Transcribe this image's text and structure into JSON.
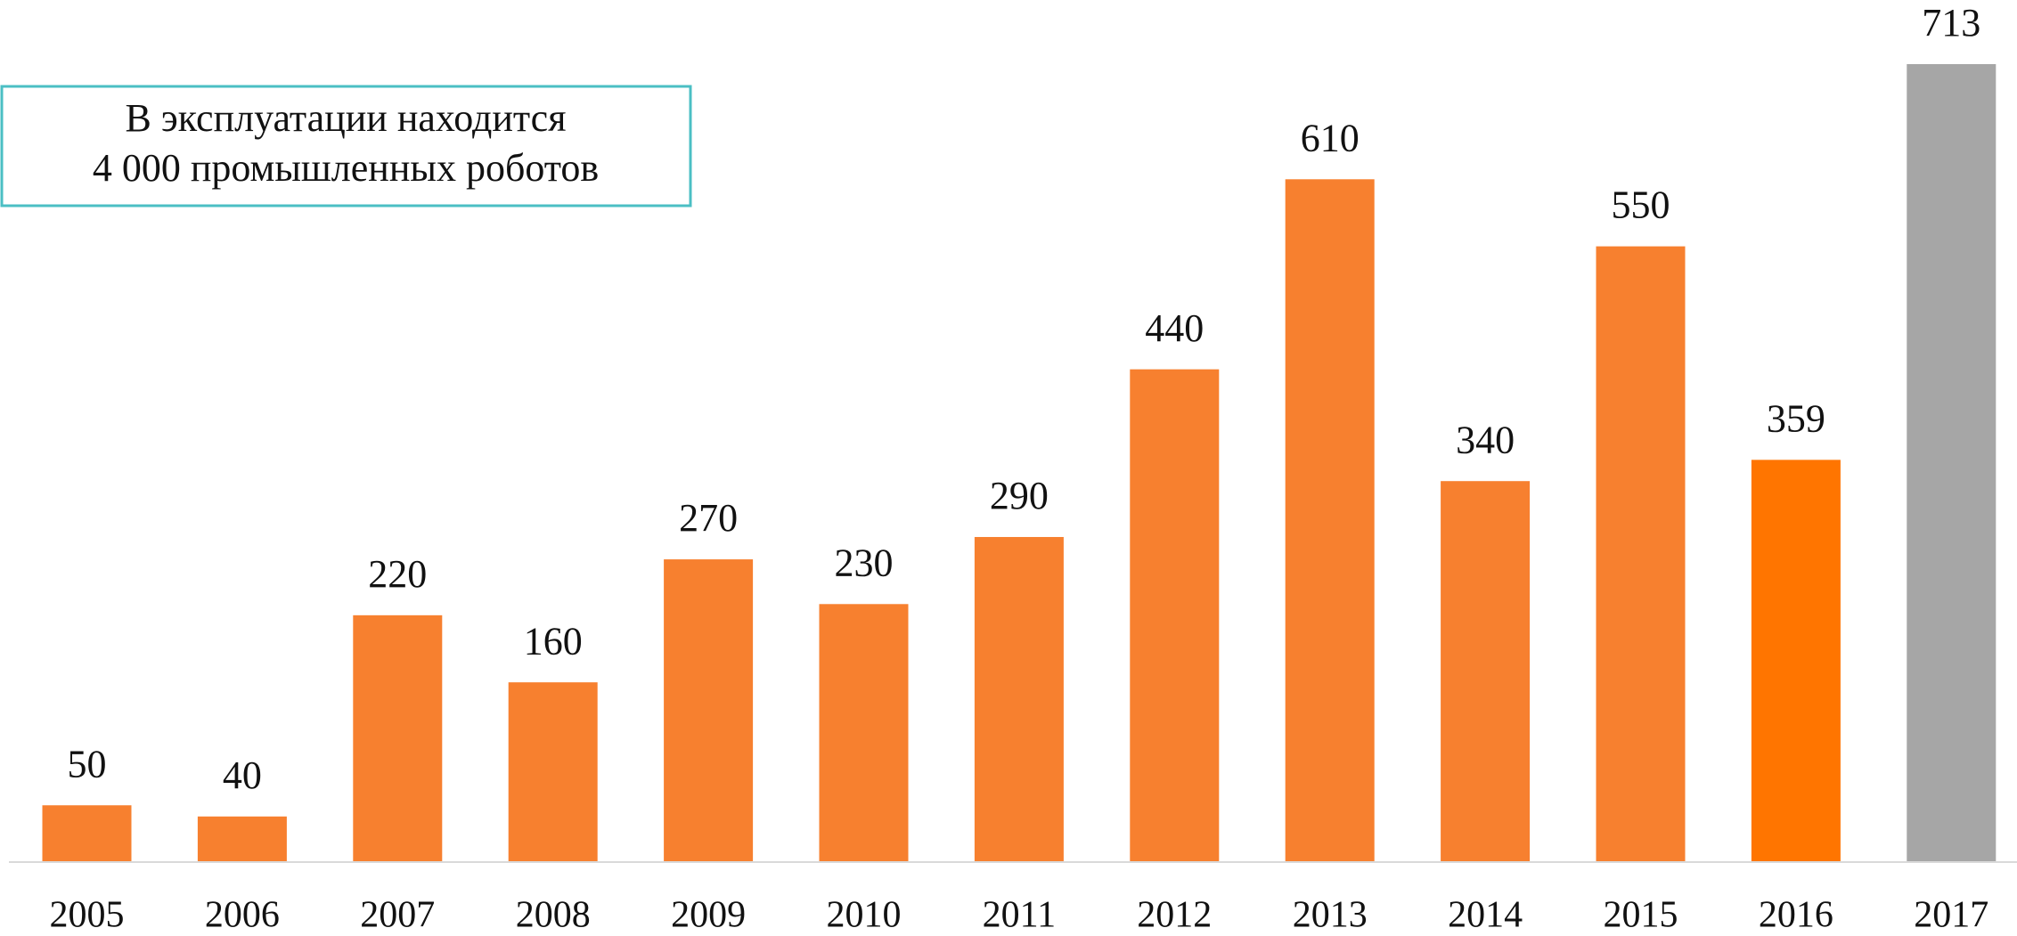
{
  "chart_data": {
    "type": "bar",
    "categories": [
      "2005",
      "2006",
      "2007",
      "2008",
      "2009",
      "2010",
      "2011",
      "2012",
      "2013",
      "2014",
      "2015",
      "2016",
      "2017"
    ],
    "values": [
      50,
      40,
      220,
      160,
      270,
      230,
      290,
      440,
      610,
      340,
      550,
      359,
      713
    ],
    "colors": [
      "#f7802f",
      "#f7802f",
      "#f7802f",
      "#f7802f",
      "#f7802f",
      "#f7802f",
      "#f7802f",
      "#f7802f",
      "#f7802f",
      "#f7802f",
      "#f7802f",
      "#ff7500",
      "#a6a6a6"
    ],
    "annotation": [
      "В эксплуатации находится",
      "4 000 промышленных роботов"
    ]
  }
}
